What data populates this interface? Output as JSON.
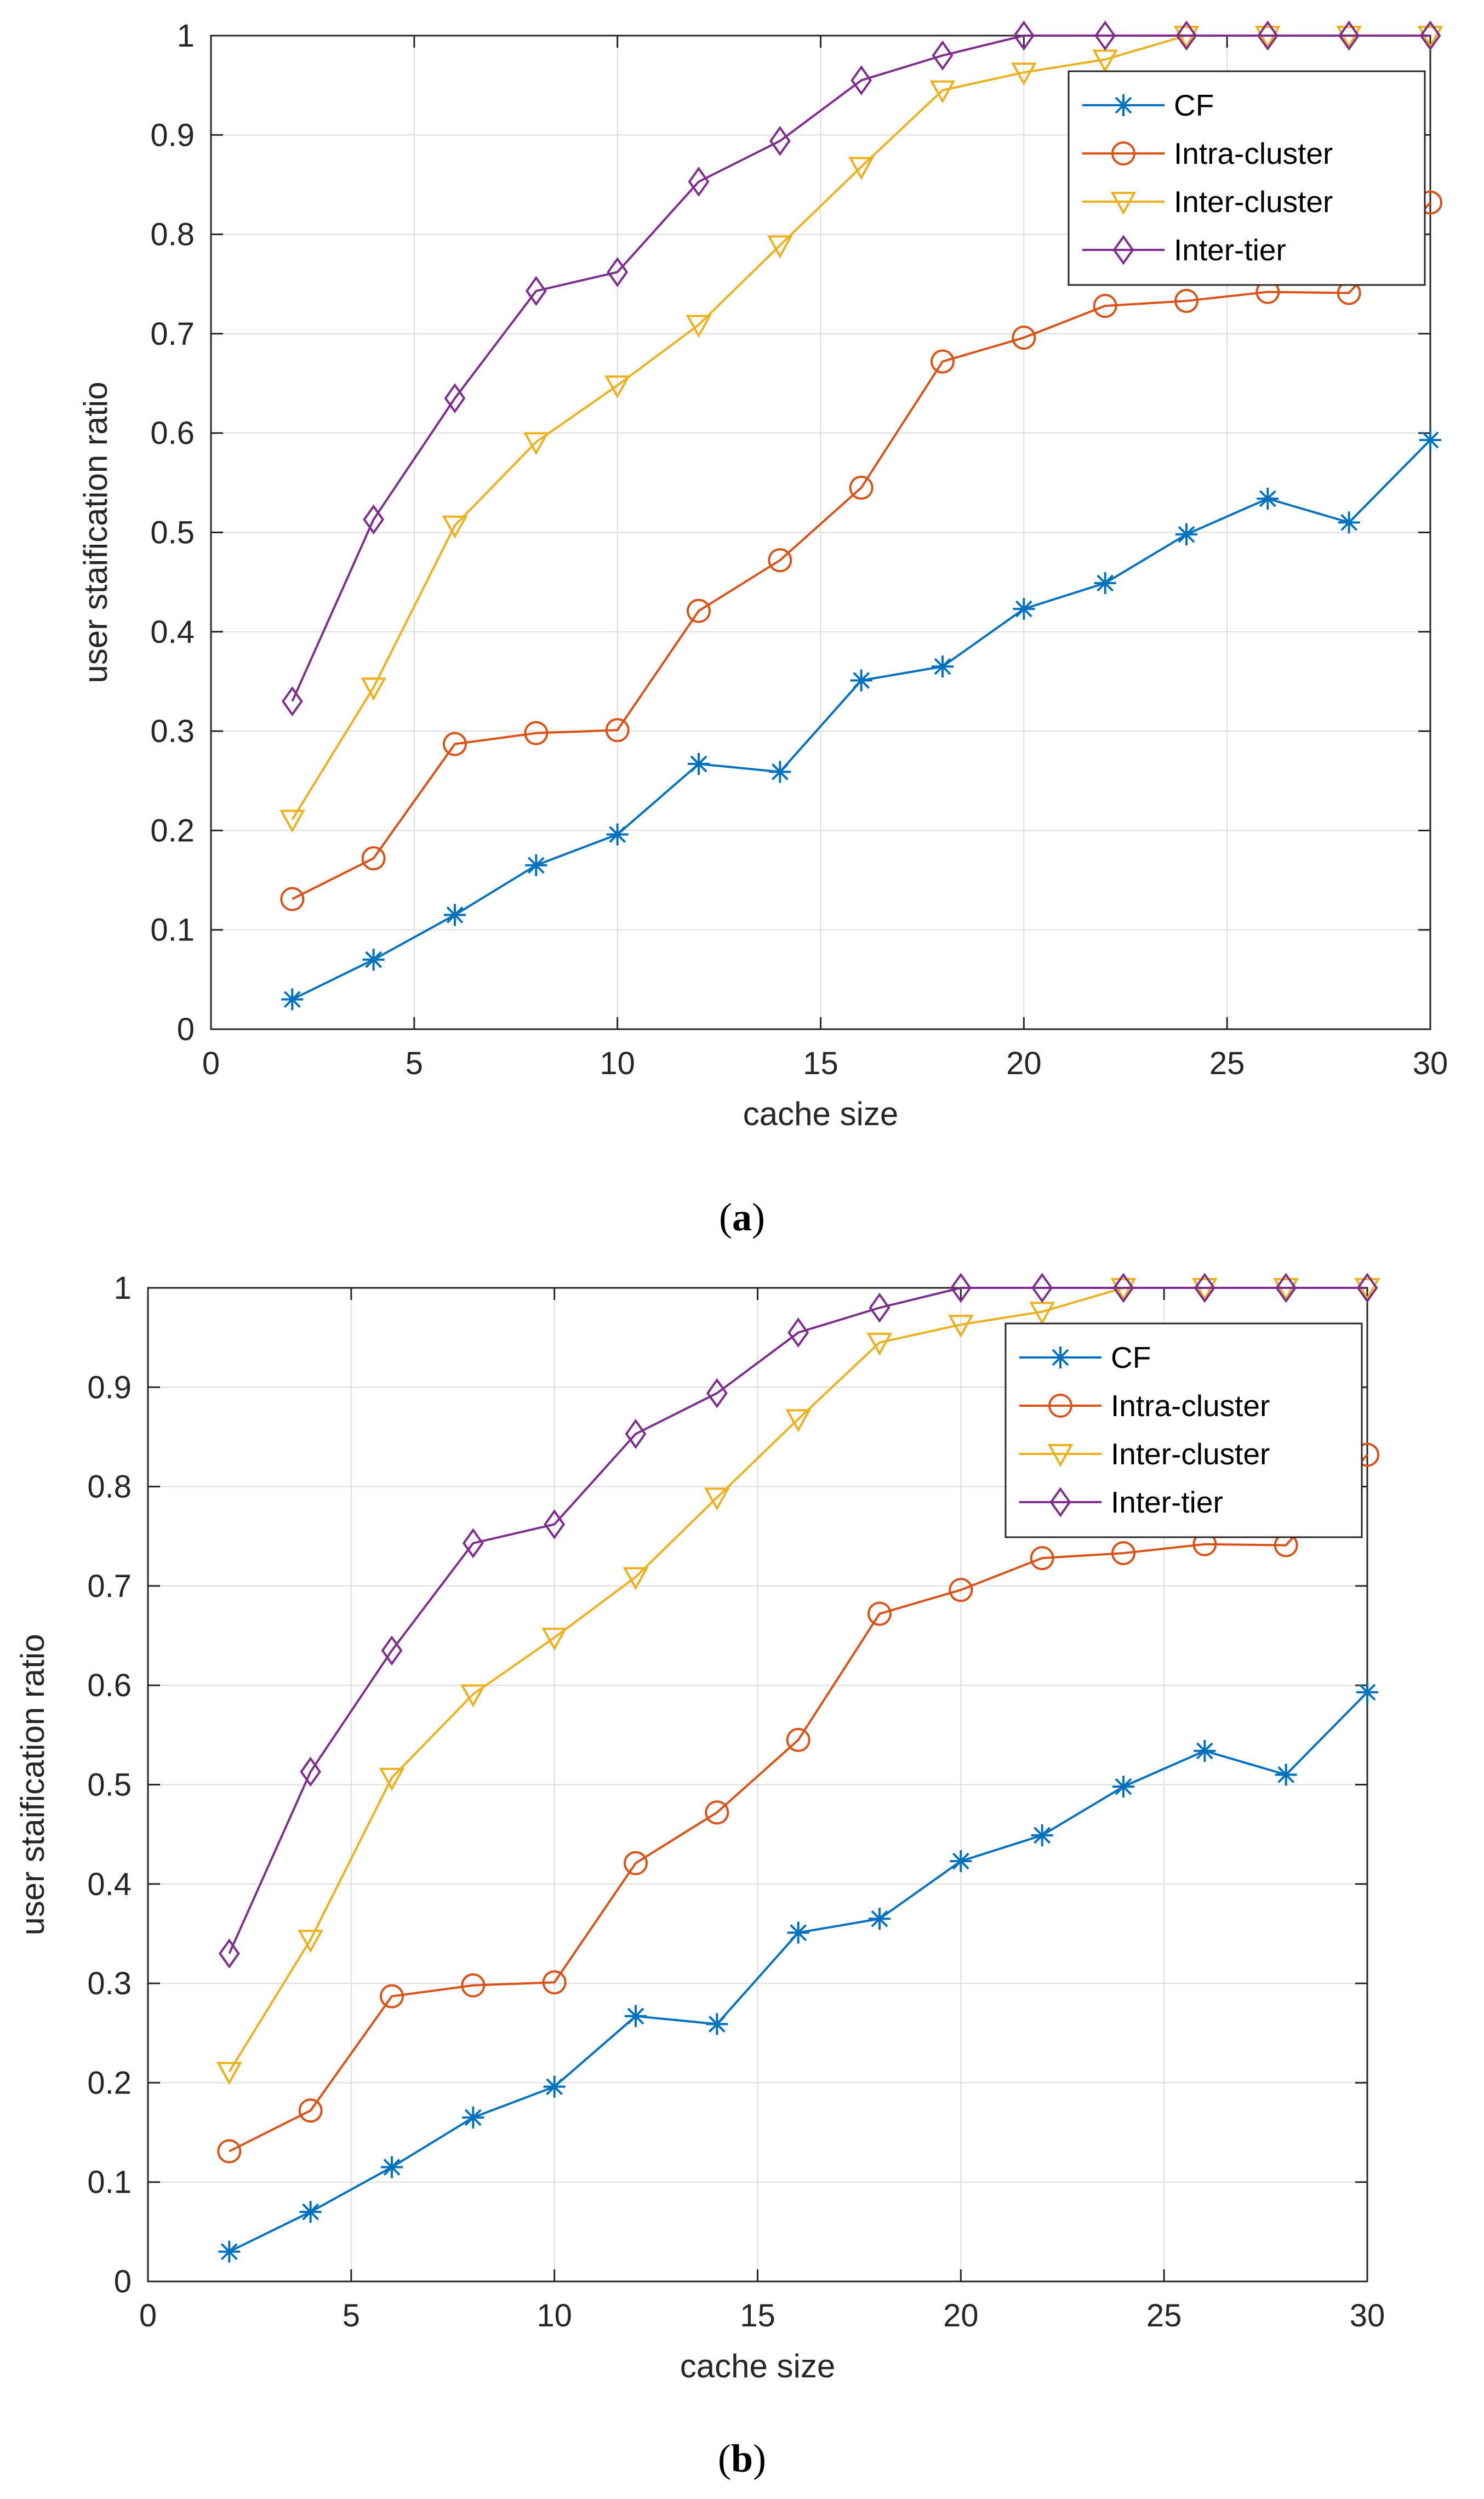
{
  "colors": {
    "CF": "#0072BD",
    "Intra-cluster": "#D95319",
    "Inter-cluster": "#EDB120",
    "Inter-tier": "#7E2F8E",
    "grid": "#DEDEDE",
    "axis": "#262626"
  },
  "chart_data": [
    {
      "type": "line",
      "caption": "(a)",
      "caption_parts": {
        "open": "(",
        "letter": "a",
        "close": ")"
      },
      "xlabel": "cache size",
      "ylabel": "user staification ratio",
      "xlim": [
        0,
        30
      ],
      "ylim": [
        0,
        1
      ],
      "xticks": [
        "0",
        "5",
        "10",
        "15",
        "20",
        "25",
        "30"
      ],
      "yticks": [
        "0",
        "0.1",
        "0.2",
        "0.3",
        "0.4",
        "0.5",
        "0.6",
        "0.7",
        "0.8",
        "0.9",
        "1"
      ],
      "grid": true,
      "legend_position": "top-right",
      "x": [
        2,
        4,
        6,
        8,
        10,
        12,
        14,
        16,
        18,
        20,
        22,
        24,
        26,
        28,
        30
      ],
      "series": [
        {
          "name": "CF",
          "marker": "asterisk",
          "values": [
            0.03,
            0.07,
            0.115,
            0.165,
            0.196,
            0.267,
            0.259,
            0.351,
            0.365,
            0.423,
            0.449,
            0.498,
            0.534,
            0.51,
            0.593
          ]
        },
        {
          "name": "Intra-cluster",
          "marker": "circle",
          "values": [
            0.131,
            0.172,
            0.287,
            0.298,
            0.301,
            0.421,
            0.472,
            0.545,
            0.672,
            0.696,
            0.728,
            0.733,
            0.742,
            0.741,
            0.832
          ]
        },
        {
          "name": "Inter-cluster",
          "marker": "triangle-down",
          "values": [
            0.211,
            0.344,
            0.507,
            0.591,
            0.648,
            0.709,
            0.789,
            0.868,
            0.945,
            0.963,
            0.976,
            1.0,
            1.0,
            1.0,
            1.0
          ]
        },
        {
          "name": "Inter-tier",
          "marker": "diamond",
          "values": [
            0.33,
            0.513,
            0.635,
            0.743,
            0.762,
            0.853,
            0.894,
            0.955,
            0.98,
            1.0,
            1.0,
            1.0,
            1.0,
            1.0,
            1.0
          ]
        }
      ]
    },
    {
      "type": "line",
      "caption": "(b)",
      "caption_parts": {
        "open": "(",
        "letter": "b",
        "close": ")"
      },
      "xlabel": "cache size",
      "ylabel": "user staification ratio",
      "xlim": [
        0,
        30
      ],
      "ylim": [
        0,
        1
      ],
      "xticks": [
        "0",
        "5",
        "10",
        "15",
        "20",
        "25",
        "30"
      ],
      "yticks": [
        "0",
        "0.1",
        "0.2",
        "0.3",
        "0.4",
        "0.5",
        "0.6",
        "0.7",
        "0.8",
        "0.9",
        "1"
      ],
      "grid": true,
      "legend_position": "top-right",
      "x": [
        2,
        4,
        6,
        8,
        10,
        12,
        14,
        16,
        18,
        20,
        22,
        24,
        26,
        28,
        30
      ],
      "series": [
        {
          "name": "CF",
          "marker": "asterisk",
          "values": [
            0.03,
            0.07,
            0.115,
            0.165,
            0.196,
            0.267,
            0.259,
            0.351,
            0.365,
            0.423,
            0.449,
            0.498,
            0.534,
            0.51,
            0.593
          ]
        },
        {
          "name": "Intra-cluster",
          "marker": "circle",
          "values": [
            0.131,
            0.172,
            0.287,
            0.298,
            0.301,
            0.421,
            0.472,
            0.545,
            0.672,
            0.696,
            0.728,
            0.733,
            0.742,
            0.741,
            0.832
          ]
        },
        {
          "name": "Inter-cluster",
          "marker": "triangle-down",
          "values": [
            0.211,
            0.344,
            0.507,
            0.591,
            0.648,
            0.709,
            0.789,
            0.868,
            0.945,
            0.963,
            0.976,
            1.0,
            1.0,
            1.0,
            1.0
          ]
        },
        {
          "name": "Inter-tier",
          "marker": "diamond",
          "values": [
            0.33,
            0.513,
            0.635,
            0.743,
            0.762,
            0.853,
            0.894,
            0.955,
            0.98,
            1.0,
            1.0,
            1.0,
            1.0,
            1.0,
            1.0
          ]
        }
      ]
    }
  ]
}
